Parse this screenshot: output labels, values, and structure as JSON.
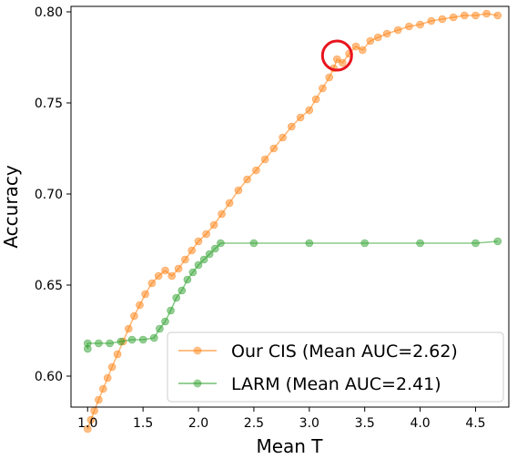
{
  "chart_data": {
    "type": "line",
    "title": "",
    "xlabel": "Mean T",
    "ylabel": "Accuracy",
    "xlim": [
      0.85,
      4.8
    ],
    "ylim": [
      0.583,
      0.803
    ],
    "xticks": [
      1.0,
      1.5,
      2.0,
      2.5,
      3.0,
      3.5,
      4.0,
      4.5
    ],
    "xtick_labels": [
      "1.0",
      "1.5",
      "2.0",
      "2.5",
      "3.0",
      "3.5",
      "4.0",
      "4.5"
    ],
    "yticks": [
      0.6,
      0.65,
      0.7,
      0.75,
      0.8
    ],
    "ytick_labels": [
      "0.60",
      "0.65",
      "0.70",
      "0.75",
      "0.80"
    ],
    "grid": false,
    "legend_position": "lower-right",
    "annotation": {
      "type": "circle",
      "x": 3.25,
      "y": 0.776,
      "color": "#e8141e"
    },
    "series": [
      {
        "name": "Our CIS (Mean AUC=2.62)",
        "color": "#ff7f0e",
        "x": [
          1.0,
          1.03,
          1.06,
          1.1,
          1.14,
          1.18,
          1.22,
          1.27,
          1.32,
          1.37,
          1.42,
          1.47,
          1.52,
          1.58,
          1.64,
          1.7,
          1.76,
          1.82,
          1.88,
          1.94,
          2.0,
          2.07,
          2.14,
          2.21,
          2.28,
          2.36,
          2.44,
          2.52,
          2.6,
          2.68,
          2.76,
          2.84,
          2.92,
          3.0,
          3.06,
          3.12,
          3.18,
          3.22,
          3.25,
          3.3,
          3.36,
          3.42,
          3.48,
          3.55,
          3.62,
          3.7,
          3.8,
          3.9,
          4.0,
          4.1,
          4.2,
          4.3,
          4.4,
          4.5,
          4.6,
          4.7
        ],
        "y": [
          0.571,
          0.576,
          0.581,
          0.587,
          0.593,
          0.599,
          0.605,
          0.612,
          0.619,
          0.626,
          0.633,
          0.639,
          0.645,
          0.651,
          0.655,
          0.658,
          0.655,
          0.659,
          0.664,
          0.669,
          0.674,
          0.678,
          0.683,
          0.689,
          0.695,
          0.702,
          0.708,
          0.713,
          0.719,
          0.725,
          0.731,
          0.737,
          0.742,
          0.746,
          0.752,
          0.758,
          0.764,
          0.769,
          0.774,
          0.772,
          0.777,
          0.781,
          0.779,
          0.784,
          0.786,
          0.788,
          0.79,
          0.792,
          0.793,
          0.795,
          0.796,
          0.797,
          0.798,
          0.798,
          0.799,
          0.798
        ]
      },
      {
        "name": "LARM (Mean AUC=2.41)",
        "color": "#2ca02c",
        "x": [
          1.0,
          1.0,
          1.1,
          1.2,
          1.3,
          1.4,
          1.5,
          1.6,
          1.65,
          1.7,
          1.75,
          1.8,
          1.85,
          1.9,
          1.95,
          2.0,
          2.05,
          2.1,
          2.15,
          2.2,
          2.5,
          3.0,
          3.5,
          4.0,
          4.5,
          4.7
        ],
        "y": [
          0.615,
          0.618,
          0.618,
          0.618,
          0.619,
          0.62,
          0.62,
          0.621,
          0.626,
          0.63,
          0.636,
          0.643,
          0.647,
          0.653,
          0.657,
          0.661,
          0.664,
          0.667,
          0.67,
          0.673,
          0.673,
          0.673,
          0.673,
          0.673,
          0.673,
          0.674
        ]
      }
    ]
  }
}
